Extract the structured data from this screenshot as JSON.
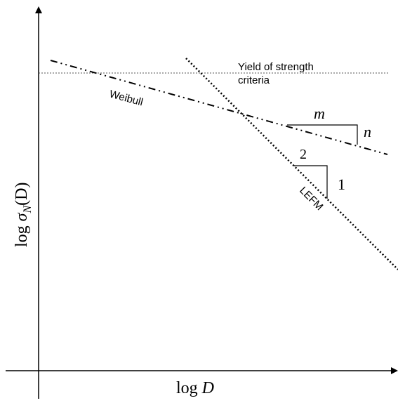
{
  "colors": {
    "ink": "#000000",
    "yield_line": "#555555",
    "background": "#ffffff"
  },
  "axes": {
    "x_label": "log D",
    "x_label_prefix": "log ",
    "x_label_var": "D",
    "y_label_prefix": "log ",
    "y_label_var": "σ",
    "y_label_sub": "N",
    "y_label_paren": "(D)"
  },
  "lines": {
    "yield": {
      "label_line1": "Yield of strength",
      "label_line2": "criteria",
      "style": "dotted"
    },
    "weibull": {
      "label": "Weibull",
      "style": "dash-dot-dot"
    },
    "lefm": {
      "label": "LEFM",
      "style": "dotted"
    }
  },
  "triangles": {
    "weibull_slope": {
      "run_label": "m",
      "rise_label": "n"
    },
    "lefm_slope": {
      "run_label": "2",
      "rise_label": "1"
    }
  }
}
